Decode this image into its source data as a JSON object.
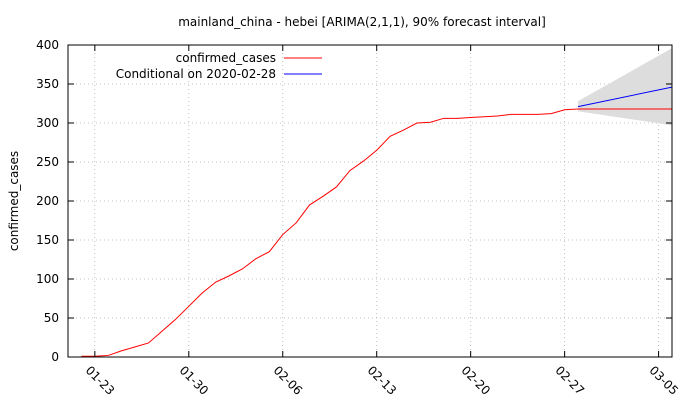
{
  "chart_data": {
    "type": "line",
    "title": "mainland_china - hebei [ARIMA(2,1,1), 90% forecast interval]",
    "xlabel": "",
    "ylabel": "confirmed_cases",
    "ylim": [
      0,
      400
    ],
    "yticks": [
      "0",
      "50",
      "100",
      "150",
      "200",
      "250",
      "300",
      "350",
      "400"
    ],
    "xlim": [
      "2020-01-21",
      "2020-03-06"
    ],
    "xticks": [
      {
        "label": "01-23",
        "date": "2020-01-23"
      },
      {
        "label": "01-30",
        "date": "2020-01-30"
      },
      {
        "label": "02-06",
        "date": "2020-02-06"
      },
      {
        "label": "02-13",
        "date": "2020-02-13"
      },
      {
        "label": "02-20",
        "date": "2020-02-20"
      },
      {
        "label": "02-27",
        "date": "2020-02-27"
      },
      {
        "label": "03-05",
        "date": "2020-03-05"
      }
    ],
    "grid": true,
    "legend_position": "top-left",
    "series": [
      {
        "name": "confirmed_cases",
        "color": "#ff0000",
        "points": [
          [
            "2020-01-22",
            1
          ],
          [
            "2020-01-23",
            1
          ],
          [
            "2020-01-24",
            2
          ],
          [
            "2020-01-25",
            8
          ],
          [
            "2020-01-26",
            13
          ],
          [
            "2020-01-27",
            18
          ],
          [
            "2020-01-28",
            33
          ],
          [
            "2020-01-29",
            48
          ],
          [
            "2020-01-30",
            65
          ],
          [
            "2020-01-31",
            82
          ],
          [
            "2020-02-01",
            96
          ],
          [
            "2020-02-02",
            104
          ],
          [
            "2020-02-03",
            113
          ],
          [
            "2020-02-04",
            126
          ],
          [
            "2020-02-05",
            135
          ],
          [
            "2020-02-06",
            157
          ],
          [
            "2020-02-07",
            172
          ],
          [
            "2020-02-08",
            195
          ],
          [
            "2020-02-09",
            206
          ],
          [
            "2020-02-10",
            218
          ],
          [
            "2020-02-11",
            239
          ],
          [
            "2020-02-12",
            251
          ],
          [
            "2020-02-13",
            265
          ],
          [
            "2020-02-14",
            283
          ],
          [
            "2020-02-15",
            291
          ],
          [
            "2020-02-16",
            300
          ],
          [
            "2020-02-17",
            301
          ],
          [
            "2020-02-18",
            306
          ],
          [
            "2020-02-19",
            306
          ],
          [
            "2020-02-20",
            307
          ],
          [
            "2020-02-21",
            308
          ],
          [
            "2020-02-22",
            309
          ],
          [
            "2020-02-23",
            311
          ],
          [
            "2020-02-24",
            311
          ],
          [
            "2020-02-25",
            311
          ],
          [
            "2020-02-26",
            312
          ],
          [
            "2020-02-27",
            317
          ],
          [
            "2020-02-28",
            318
          ],
          [
            "2020-02-29",
            318
          ],
          [
            "2020-03-01",
            318
          ],
          [
            "2020-03-02",
            318
          ],
          [
            "2020-03-03",
            318
          ],
          [
            "2020-03-04",
            318
          ],
          [
            "2020-03-05",
            318
          ],
          [
            "2020-03-06",
            318
          ]
        ]
      },
      {
        "name": "Conditional on 2020-02-28",
        "color": "#0000ff",
        "points": [
          [
            "2020-02-28",
            321
          ],
          [
            "2020-03-06",
            346
          ]
        ]
      }
    ],
    "interval": {
      "color": "#dddddd",
      "points": [
        [
          "2020-02-28",
          315,
          328
        ],
        [
          "2020-03-06",
          297,
          396
        ]
      ]
    }
  }
}
